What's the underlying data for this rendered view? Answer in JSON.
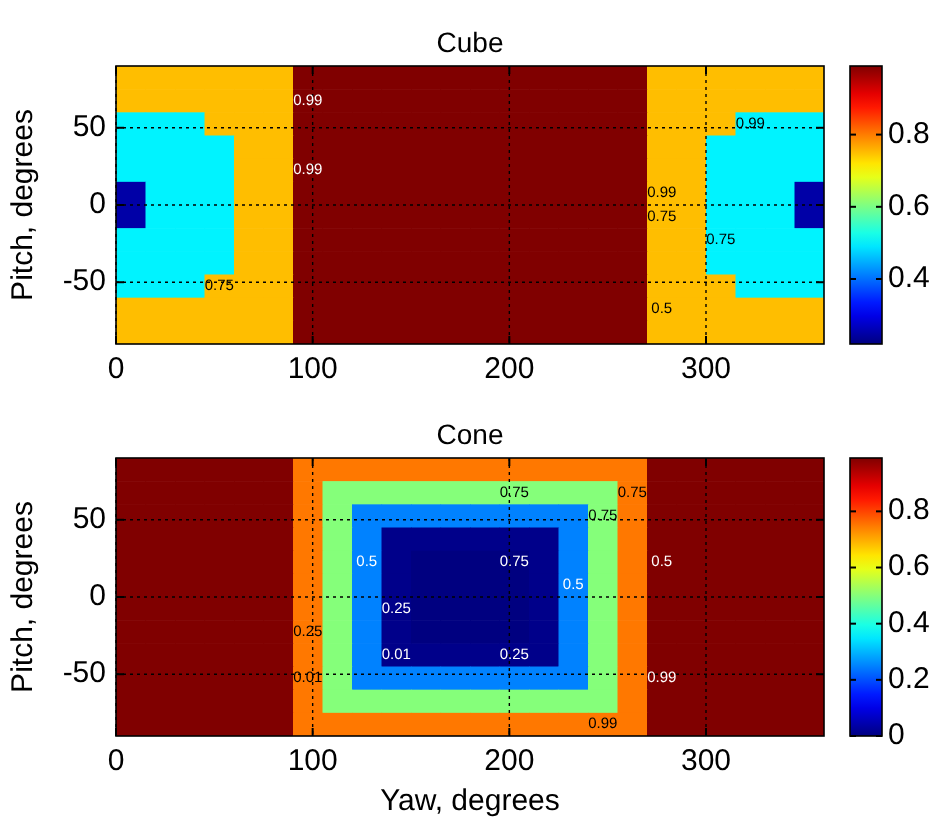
{
  "chart_data": [
    {
      "type": "heatmap",
      "title": "Cube",
      "ylabel": "Pitch, degrees",
      "x": [
        7.5,
        22.5,
        37.5,
        52.5,
        67.5,
        82.5,
        97.5,
        112.5,
        127.5,
        142.5,
        157.5,
        172.5,
        187.5,
        202.5,
        217.5,
        232.5,
        247.5,
        262.5,
        277.5,
        292.5,
        307.5,
        322.5,
        337.5,
        352.5
      ],
      "y": [
        82.5,
        67.5,
        52.5,
        37.5,
        22.5,
        7.5,
        -7.5,
        -22.5,
        -37.5,
        -52.5,
        -67.5,
        -82.5
      ],
      "cells": [
        [
          0.75,
          0.75,
          0.75,
          0.75,
          0.75,
          0.75,
          0.99,
          0.99,
          0.99,
          0.99,
          0.99,
          0.99,
          0.99,
          0.99,
          0.99,
          0.99,
          0.99,
          0.99,
          0.75,
          0.75,
          0.75,
          0.75,
          0.75,
          0.75
        ],
        [
          0.75,
          0.75,
          0.75,
          0.75,
          0.75,
          0.75,
          0.99,
          0.99,
          0.99,
          0.99,
          0.99,
          0.99,
          0.99,
          0.99,
          0.99,
          0.99,
          0.99,
          0.99,
          0.75,
          0.75,
          0.75,
          0.75,
          0.75,
          0.75
        ],
        [
          0.5,
          0.5,
          0.5,
          0.75,
          0.75,
          0.75,
          0.99,
          0.99,
          0.99,
          0.99,
          0.99,
          0.99,
          0.99,
          0.99,
          0.99,
          0.99,
          0.99,
          0.99,
          0.75,
          0.75,
          0.75,
          0.5,
          0.5,
          0.5
        ],
        [
          0.5,
          0.5,
          0.5,
          0.5,
          0.75,
          0.75,
          0.99,
          0.99,
          0.99,
          0.99,
          0.99,
          0.99,
          0.99,
          0.99,
          0.99,
          0.99,
          0.99,
          0.99,
          0.75,
          0.75,
          0.5,
          0.5,
          0.5,
          0.5
        ],
        [
          0.5,
          0.5,
          0.5,
          0.5,
          0.75,
          0.75,
          0.99,
          0.99,
          0.99,
          0.99,
          0.99,
          0.99,
          0.99,
          0.99,
          0.99,
          0.99,
          0.99,
          0.99,
          0.75,
          0.75,
          0.5,
          0.5,
          0.5,
          0.5
        ],
        [
          0.25,
          0.5,
          0.5,
          0.5,
          0.75,
          0.75,
          0.99,
          0.99,
          0.99,
          0.99,
          0.99,
          0.99,
          0.99,
          0.99,
          0.99,
          0.99,
          0.99,
          0.99,
          0.75,
          0.75,
          0.5,
          0.5,
          0.5,
          0.25
        ],
        [
          0.25,
          0.5,
          0.5,
          0.5,
          0.75,
          0.75,
          0.99,
          0.99,
          0.99,
          0.99,
          0.99,
          0.99,
          0.99,
          0.99,
          0.99,
          0.99,
          0.99,
          0.99,
          0.75,
          0.75,
          0.5,
          0.5,
          0.5,
          0.25
        ],
        [
          0.5,
          0.5,
          0.5,
          0.5,
          0.75,
          0.75,
          0.99,
          0.99,
          0.99,
          0.99,
          0.99,
          0.99,
          0.99,
          0.99,
          0.99,
          0.99,
          0.99,
          0.99,
          0.75,
          0.75,
          0.5,
          0.5,
          0.5,
          0.5
        ],
        [
          0.5,
          0.5,
          0.5,
          0.5,
          0.75,
          0.75,
          0.99,
          0.99,
          0.99,
          0.99,
          0.99,
          0.99,
          0.99,
          0.99,
          0.99,
          0.99,
          0.99,
          0.99,
          0.75,
          0.75,
          0.5,
          0.5,
          0.5,
          0.5
        ],
        [
          0.5,
          0.5,
          0.5,
          0.75,
          0.75,
          0.75,
          0.99,
          0.99,
          0.99,
          0.99,
          0.99,
          0.99,
          0.99,
          0.99,
          0.99,
          0.99,
          0.99,
          0.99,
          0.75,
          0.75,
          0.75,
          0.5,
          0.5,
          0.5
        ],
        [
          0.75,
          0.75,
          0.75,
          0.75,
          0.75,
          0.75,
          0.99,
          0.99,
          0.99,
          0.99,
          0.99,
          0.99,
          0.99,
          0.99,
          0.99,
          0.99,
          0.99,
          0.99,
          0.75,
          0.75,
          0.75,
          0.75,
          0.75,
          0.75
        ],
        [
          0.75,
          0.75,
          0.75,
          0.75,
          0.75,
          0.75,
          0.99,
          0.99,
          0.99,
          0.99,
          0.99,
          0.99,
          0.99,
          0.99,
          0.99,
          0.99,
          0.99,
          0.99,
          0.75,
          0.75,
          0.75,
          0.75,
          0.75,
          0.75
        ]
      ],
      "clim": [
        0.22,
        0.99
      ],
      "cticks": [
        0.4,
        0.6,
        0.8
      ],
      "xlim": [
        0,
        360
      ],
      "xticks": [
        0,
        100,
        200,
        300
      ],
      "ylim": [
        -90,
        90
      ],
      "yticks": [
        -50,
        0,
        50
      ],
      "grid": true,
      "annotations": [
        "0.99",
        "0.99",
        "0.99",
        "0.99",
        "0.75",
        "0.75",
        "0.75",
        "0.5"
      ]
    },
    {
      "type": "heatmap",
      "title": "Cone",
      "xlabel": "Yaw, degrees",
      "ylabel": "Pitch, degrees",
      "x": [
        7.5,
        22.5,
        37.5,
        52.5,
        67.5,
        82.5,
        97.5,
        112.5,
        127.5,
        142.5,
        157.5,
        172.5,
        187.5,
        202.5,
        217.5,
        232.5,
        247.5,
        262.5,
        277.5,
        292.5,
        307.5,
        322.5,
        337.5,
        352.5
      ],
      "y": [
        82.5,
        67.5,
        52.5,
        37.5,
        22.5,
        7.5,
        -7.5,
        -22.5,
        -37.5,
        -52.5,
        -67.5,
        -82.5
      ],
      "cells": [
        [
          0.99,
          0.99,
          0.99,
          0.99,
          0.99,
          0.99,
          0.75,
          0.75,
          0.75,
          0.75,
          0.75,
          0.75,
          0.75,
          0.75,
          0.75,
          0.75,
          0.75,
          0.75,
          0.99,
          0.99,
          0.99,
          0.99,
          0.99,
          0.99
        ],
        [
          0.99,
          0.99,
          0.99,
          0.99,
          0.99,
          0.99,
          0.75,
          0.5,
          0.5,
          0.5,
          0.5,
          0.5,
          0.5,
          0.5,
          0.5,
          0.5,
          0.5,
          0.75,
          0.99,
          0.99,
          0.99,
          0.99,
          0.99,
          0.99
        ],
        [
          0.99,
          0.99,
          0.99,
          0.99,
          0.99,
          0.99,
          0.75,
          0.5,
          0.25,
          0.25,
          0.25,
          0.25,
          0.25,
          0.25,
          0.25,
          0.25,
          0.5,
          0.75,
          0.99,
          0.99,
          0.99,
          0.99,
          0.99,
          0.99
        ],
        [
          0.99,
          0.99,
          0.99,
          0.99,
          0.99,
          0.99,
          0.75,
          0.5,
          0.25,
          0.01,
          0.01,
          0.01,
          0.01,
          0.01,
          0.01,
          0.25,
          0.5,
          0.75,
          0.99,
          0.99,
          0.99,
          0.99,
          0.99,
          0.99
        ],
        [
          0.99,
          0.99,
          0.99,
          0.99,
          0.99,
          0.99,
          0.75,
          0.5,
          0.25,
          0.01,
          0,
          0,
          0,
          0,
          0.01,
          0.25,
          0.5,
          0.75,
          0.99,
          0.99,
          0.99,
          0.99,
          0.99,
          0.99
        ],
        [
          0.99,
          0.99,
          0.99,
          0.99,
          0.99,
          0.99,
          0.75,
          0.5,
          0.25,
          0.01,
          0,
          0,
          0,
          0,
          0.01,
          0.25,
          0.5,
          0.75,
          0.99,
          0.99,
          0.99,
          0.99,
          0.99,
          0.99
        ],
        [
          0.99,
          0.99,
          0.99,
          0.99,
          0.99,
          0.99,
          0.75,
          0.5,
          0.25,
          0.01,
          0,
          0,
          0,
          0,
          0.01,
          0.25,
          0.5,
          0.75,
          0.99,
          0.99,
          0.99,
          0.99,
          0.99,
          0.99
        ],
        [
          0.99,
          0.99,
          0.99,
          0.99,
          0.99,
          0.99,
          0.75,
          0.5,
          0.25,
          0.01,
          0,
          0,
          0,
          0,
          0.01,
          0.25,
          0.5,
          0.75,
          0.99,
          0.99,
          0.99,
          0.99,
          0.99,
          0.99
        ],
        [
          0.99,
          0.99,
          0.99,
          0.99,
          0.99,
          0.99,
          0.75,
          0.5,
          0.25,
          0.01,
          0.01,
          0.01,
          0.01,
          0.01,
          0.01,
          0.25,
          0.5,
          0.75,
          0.99,
          0.99,
          0.99,
          0.99,
          0.99,
          0.99
        ],
        [
          0.99,
          0.99,
          0.99,
          0.99,
          0.99,
          0.99,
          0.75,
          0.5,
          0.25,
          0.25,
          0.25,
          0.25,
          0.25,
          0.25,
          0.25,
          0.25,
          0.5,
          0.75,
          0.99,
          0.99,
          0.99,
          0.99,
          0.99,
          0.99
        ],
        [
          0.99,
          0.99,
          0.99,
          0.99,
          0.99,
          0.99,
          0.75,
          0.5,
          0.5,
          0.5,
          0.5,
          0.5,
          0.5,
          0.5,
          0.5,
          0.5,
          0.5,
          0.75,
          0.99,
          0.99,
          0.99,
          0.99,
          0.99,
          0.99
        ],
        [
          0.99,
          0.99,
          0.99,
          0.99,
          0.99,
          0.99,
          0.75,
          0.75,
          0.75,
          0.75,
          0.75,
          0.75,
          0.75,
          0.75,
          0.75,
          0.75,
          0.75,
          0.75,
          0.99,
          0.99,
          0.99,
          0.99,
          0.99,
          0.99
        ]
      ],
      "clim": [
        0,
        0.99
      ],
      "cticks": [
        0,
        0.2,
        0.4,
        0.6,
        0.8
      ],
      "xlim": [
        0,
        360
      ],
      "xticks": [
        0,
        100,
        200,
        300
      ],
      "ylim": [
        -90,
        90
      ],
      "yticks": [
        -50,
        0,
        50
      ],
      "grid": true,
      "annotations": [
        "0.75",
        "0.75",
        "0.75",
        "0.75",
        "0.5",
        "0.5",
        "0.5",
        "0.25",
        "0.25",
        "0.25",
        "0.01",
        "0.01",
        "0.99",
        "0.99"
      ]
    }
  ]
}
